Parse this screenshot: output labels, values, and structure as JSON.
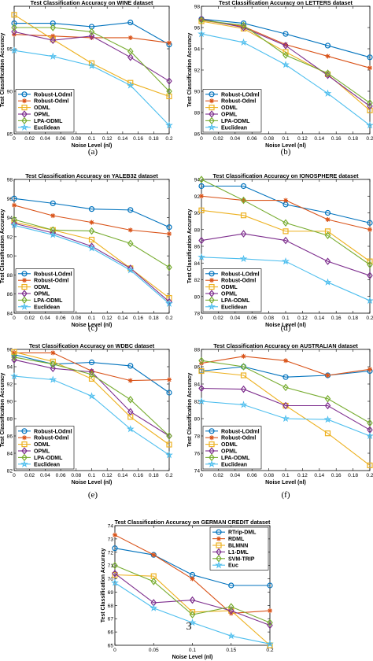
{
  "panel_labels": [
    "(a)",
    "(b)",
    "(c)",
    "(d)",
    "(e)",
    "(f)",
    "3"
  ],
  "chart_data": [
    {
      "type": "line",
      "title": "Test Classification Accuracy on WINE dataset",
      "xlabel": "Noise Level (nl)",
      "ylabel": "Test Classification Accuracy",
      "x": [
        0,
        0.05,
        0.1,
        0.15,
        0.2
      ],
      "xticks": [
        "0",
        "0.02",
        "0.04",
        "0.06",
        "0.08",
        "0.1",
        "0.12",
        "0.14",
        "0.16",
        "0.18",
        "0.2"
      ],
      "ylim": [
        85,
        100
      ],
      "yticks": [
        "85",
        "90",
        "95"
      ],
      "legend_position": "bottom-left",
      "series": [
        {
          "name": "Robust-LOdml",
          "color": "#0072bd",
          "marker": "circle",
          "values": [
            98.0,
            98.0,
            97.6,
            98.1,
            95.5
          ]
        },
        {
          "name": "Robust-Odml",
          "color": "#d95319",
          "marker": "asterisk",
          "values": [
            96.7,
            96.5,
            96.3,
            96.3,
            95.7
          ]
        },
        {
          "name": "ODML",
          "color": "#edb120",
          "marker": "square",
          "values": [
            99.0,
            96.1,
            93.3,
            91.0,
            89.4
          ]
        },
        {
          "name": "OPML",
          "color": "#7e2f8e",
          "marker": "diamond",
          "values": [
            97.0,
            96.0,
            96.5,
            94.0,
            91.2
          ]
        },
        {
          "name": "LPA-ODML",
          "color": "#77ac30",
          "marker": "diamond",
          "values": [
            97.5,
            97.5,
            97.0,
            94.7,
            90.0
          ]
        },
        {
          "name": "Euclidean",
          "color": "#4dbeee",
          "marker": "star",
          "values": [
            94.8,
            94.1,
            93.0,
            90.7,
            86.0
          ]
        }
      ]
    },
    {
      "type": "line",
      "title": "Test Classification Accuracy on LETTERS dataset",
      "xlabel": "Noise Level (nl)",
      "ylabel": "Test Classification Accuracy",
      "x": [
        0,
        0.05,
        0.1,
        0.15,
        0.2
      ],
      "xticks": [
        "0",
        "0.02",
        "0.04",
        "0.06",
        "0.08",
        "0.1",
        "0.12",
        "0.14",
        "0.16",
        "0.18",
        "0.2"
      ],
      "ylim": [
        86,
        98
      ],
      "yticks": [
        "86",
        "88",
        "90",
        "92",
        "94",
        "96",
        "98"
      ],
      "legend_position": "bottom-left",
      "series": [
        {
          "name": "Robust-LOdml",
          "color": "#0072bd",
          "marker": "circle",
          "values": [
            96.8,
            96.4,
            95.4,
            94.3,
            93.2
          ]
        },
        {
          "name": "Robust-Odml",
          "color": "#d95319",
          "marker": "asterisk",
          "values": [
            96.7,
            96.1,
            94.4,
            93.3,
            92.2
          ]
        },
        {
          "name": "ODML",
          "color": "#edb120",
          "marker": "square",
          "values": [
            96.6,
            95.9,
            93.7,
            91.6,
            88.2
          ]
        },
        {
          "name": "OPML",
          "color": "#7e2f8e",
          "marker": "diamond",
          "values": [
            96.8,
            96.0,
            94.3,
            91.5,
            88.6
          ]
        },
        {
          "name": "LPA-ODML",
          "color": "#77ac30",
          "marker": "diamond",
          "values": [
            96.7,
            96.2,
            93.4,
            91.7,
            88.9
          ]
        },
        {
          "name": "Euclidean",
          "color": "#4dbeee",
          "marker": "star",
          "values": [
            95.4,
            94.6,
            92.5,
            89.8,
            86.8
          ]
        }
      ]
    },
    {
      "type": "line",
      "title": "Test Classification Accuracy on YALEB32 dataset",
      "xlabel": "Noise Level (nl)",
      "ylabel": "Test Classification Accuracy",
      "x": [
        0,
        0.05,
        0.1,
        0.15,
        0.2
      ],
      "xticks": [
        "0",
        "0.02",
        "0.04",
        "0.06",
        "0.08",
        "0.1",
        "0.12",
        "0.14",
        "0.16",
        "0.18",
        "0.2"
      ],
      "ylim": [
        84,
        98
      ],
      "yticks": [
        "84",
        "86",
        "88",
        "90",
        "92",
        "94",
        "96",
        "98"
      ],
      "legend_position": "bottom-left",
      "series": [
        {
          "name": "Robust-LOdml",
          "color": "#0072bd",
          "marker": "circle",
          "values": [
            96.0,
            95.5,
            94.9,
            94.8,
            93.0
          ]
        },
        {
          "name": "Robust-Odml",
          "color": "#d95319",
          "marker": "asterisk",
          "values": [
            95.3,
            94.2,
            93.5,
            92.7,
            92.3
          ]
        },
        {
          "name": "ODML",
          "color": "#edb120",
          "marker": "square",
          "values": [
            93.5,
            92.7,
            91.7,
            88.7,
            85.6
          ]
        },
        {
          "name": "OPML",
          "color": "#7e2f8e",
          "marker": "diamond",
          "values": [
            93.4,
            92.4,
            91.0,
            88.7,
            85.2
          ]
        },
        {
          "name": "LPA-ODML",
          "color": "#77ac30",
          "marker": "diamond",
          "values": [
            93.8,
            92.7,
            92.6,
            91.3,
            88.8
          ]
        },
        {
          "name": "Euclidean",
          "color": "#4dbeee",
          "marker": "star",
          "values": [
            93.2,
            92.2,
            90.8,
            88.5,
            85.0
          ]
        }
      ]
    },
    {
      "type": "line",
      "title": "Test Classification Accuracy on IONOSPHERE dataset",
      "xlabel": "Noise Level (nl)",
      "ylabel": "Test Classification Accuracy",
      "x": [
        0,
        0.05,
        0.1,
        0.15,
        0.2
      ],
      "xticks": [
        "0",
        "0.02",
        "0.04",
        "0.06",
        "0.08",
        "0.1",
        "0.12",
        "0.14",
        "0.16",
        "0.18",
        "0.2"
      ],
      "ylim": [
        78,
        94
      ],
      "yticks": [
        "78",
        "80",
        "82",
        "84",
        "86",
        "88",
        "90",
        "92",
        "94"
      ],
      "legend_position": "bottom-left",
      "series": [
        {
          "name": "Robust-LOdml",
          "color": "#0072bd",
          "marker": "circle",
          "values": [
            93.2,
            93.2,
            91.0,
            90.0,
            88.8
          ]
        },
        {
          "name": "Robust-Odml",
          "color": "#d95319",
          "marker": "asterisk",
          "values": [
            92.0,
            91.5,
            91.5,
            89.2,
            88.0
          ]
        },
        {
          "name": "ODML",
          "color": "#edb120",
          "marker": "square",
          "values": [
            90.3,
            89.7,
            87.8,
            87.8,
            84.2
          ]
        },
        {
          "name": "OPML",
          "color": "#7e2f8e",
          "marker": "diamond",
          "values": [
            86.7,
            87.5,
            86.7,
            84.2,
            82.5
          ]
        },
        {
          "name": "LPA-ODML",
          "color": "#77ac30",
          "marker": "diamond",
          "values": [
            94.0,
            91.5,
            88.8,
            87.3,
            83.8
          ]
        },
        {
          "name": "Euclidean",
          "color": "#4dbeee",
          "marker": "star",
          "values": [
            84.7,
            84.5,
            84.2,
            81.7,
            79.5
          ]
        }
      ]
    },
    {
      "type": "line",
      "title": "Test Classification Accuracy on WDBC dataset",
      "xlabel": "Noise Level (nl)",
      "ylabel": "Test Classification Accuracy",
      "x": [
        0,
        0.05,
        0.1,
        0.15,
        0.2
      ],
      "xticks": [
        "0",
        "0.02",
        "0.04",
        "0.06",
        "0.08",
        "0.1",
        "0.12",
        "0.14",
        "0.16",
        "0.18",
        "0.2"
      ],
      "ylim": [
        82,
        96
      ],
      "yticks": [
        "82",
        "84",
        "86",
        "88",
        "90",
        "92",
        "94",
        "96"
      ],
      "legend_position": "bottom-left",
      "series": [
        {
          "name": "Robust-LOdml",
          "color": "#0072bd",
          "marker": "circle",
          "values": [
            95.4,
            94.3,
            94.5,
            94.1,
            91.0
          ]
        },
        {
          "name": "Robust-Odml",
          "color": "#d95319",
          "marker": "asterisk",
          "values": [
            95.6,
            95.6,
            93.5,
            92.4,
            92.5
          ]
        },
        {
          "name": "ODML",
          "color": "#edb120",
          "marker": "square",
          "values": [
            95.7,
            94.6,
            92.6,
            88.2,
            85.0
          ]
        },
        {
          "name": "OPML",
          "color": "#7e2f8e",
          "marker": "diamond",
          "values": [
            94.8,
            93.8,
            93.4,
            88.8,
            86.0
          ]
        },
        {
          "name": "LPA-ODML",
          "color": "#77ac30",
          "marker": "diamond",
          "values": [
            95.1,
            94.3,
            93.1,
            90.2,
            86.0
          ]
        },
        {
          "name": "Euclidean",
          "color": "#4dbeee",
          "marker": "star",
          "values": [
            92.9,
            92.5,
            90.6,
            86.8,
            83.8
          ]
        }
      ]
    },
    {
      "type": "line",
      "title": "Test Classification Accuracy on AUSTRALIAN dataset",
      "xlabel": "Noise Level (nl)",
      "ylabel": "Test Classification Accuracy",
      "x": [
        0,
        0.05,
        0.1,
        0.15,
        0.2
      ],
      "xticks": [
        "0",
        "0.02",
        "0.04",
        "0.06",
        "0.08",
        "0.1",
        "0.12",
        "0.14",
        "0.16",
        "0.18",
        "0.2"
      ],
      "ylim": [
        74,
        88
      ],
      "yticks": [
        "74",
        "76",
        "78",
        "80",
        "82",
        "84",
        "86",
        "88"
      ],
      "legend_position": "bottom-left",
      "series": [
        {
          "name": "Robust-LOdml",
          "color": "#0072bd",
          "marker": "circle",
          "values": [
            85.5,
            86.0,
            84.8,
            85.0,
            85.5
          ]
        },
        {
          "name": "Robust-Odml",
          "color": "#d95319",
          "marker": "asterisk",
          "values": [
            86.4,
            87.2,
            86.7,
            85.0,
            85.7
          ]
        },
        {
          "name": "ODML",
          "color": "#edb120",
          "marker": "square",
          "values": [
            85.5,
            85.0,
            81.5,
            78.3,
            74.6
          ]
        },
        {
          "name": "OPML",
          "color": "#7e2f8e",
          "marker": "diamond",
          "values": [
            83.5,
            83.4,
            81.5,
            81.5,
            78.7
          ]
        },
        {
          "name": "LPA-ODML",
          "color": "#77ac30",
          "marker": "diamond",
          "values": [
            86.7,
            86.0,
            83.6,
            82.3,
            79.5
          ]
        },
        {
          "name": "Euclidean",
          "color": "#4dbeee",
          "marker": "star",
          "values": [
            82.0,
            81.6,
            80.0,
            79.9,
            78.0
          ]
        }
      ]
    },
    {
      "type": "line",
      "title": "Test Classification Accuracy on GERMAN CREDIT dataset",
      "xlabel": "Noise Level (nl)",
      "ylabel": "Test Classification Accuracy",
      "x": [
        0,
        0.05,
        0.1,
        0.15,
        0.2
      ],
      "xticks": [
        "0",
        "0.05",
        "0.1",
        "0.15",
        "0.2"
      ],
      "ylim": [
        65,
        74
      ],
      "yticks": [
        "65",
        "66",
        "67",
        "68",
        "69",
        "70",
        "71",
        "72",
        "73",
        "74"
      ],
      "legend_position": "top-right",
      "series": [
        {
          "name": "RTrip-DML",
          "color": "#0072bd",
          "marker": "circle",
          "values": [
            72.3,
            71.8,
            70.3,
            69.5,
            69.5
          ]
        },
        {
          "name": "RDML",
          "color": "#d95319",
          "marker": "asterisk",
          "values": [
            73.3,
            71.8,
            70.0,
            67.4,
            67.6
          ]
        },
        {
          "name": "BLMNN",
          "color": "#edb120",
          "marker": "square",
          "values": [
            70.3,
            70.2,
            67.5,
            67.6,
            65.0
          ]
        },
        {
          "name": "L1-DML",
          "color": "#7e2f8e",
          "marker": "diamond",
          "values": [
            70.4,
            68.2,
            68.4,
            67.6,
            66.5
          ]
        },
        {
          "name": "SVM-TRIP",
          "color": "#77ac30",
          "marker": "diamond",
          "values": [
            71.0,
            69.8,
            67.3,
            67.9,
            66.7
          ]
        },
        {
          "name": "Euc",
          "color": "#4dbeee",
          "marker": "star",
          "values": [
            69.7,
            67.8,
            66.7,
            65.7,
            65.1
          ]
        }
      ]
    }
  ]
}
